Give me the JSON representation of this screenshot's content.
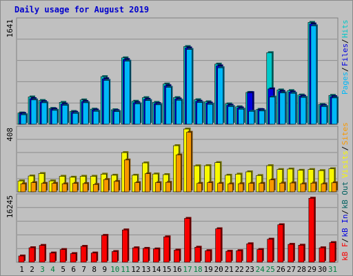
{
  "title": "Daily usage for August 2019",
  "colors": {
    "background": "#c0c0c0",
    "hits": "#00c8c8",
    "files": "#0000e0",
    "pages": "#00b8f8",
    "visits": "#f8f800",
    "sites": "#f89800",
    "kbin": "#0000e0",
    "kbout": "#006060",
    "kbf": "#f80000",
    "weekend_day": "#008040",
    "weekday": "#000000"
  },
  "chart_data": [
    {
      "type": "bar",
      "panel": "top",
      "ymax_label": "1641",
      "ylim": [
        0,
        1641
      ],
      "legend": [
        "Pages",
        "Files",
        "Hits"
      ],
      "categories": [
        "1",
        "2",
        "3",
        "4",
        "5",
        "6",
        "7",
        "8",
        "9",
        "10",
        "11",
        "12",
        "13",
        "14",
        "15",
        "16",
        "17",
        "18",
        "19",
        "20",
        "21",
        "22",
        "23",
        "24",
        "25",
        "26",
        "27",
        "28",
        "29",
        "30",
        "31"
      ],
      "weekend": [
        3,
        4,
        10,
        11,
        17,
        18,
        24,
        25,
        31
      ],
      "series": [
        {
          "name": "Hits",
          "values": [
            178,
            432,
            376,
            250,
            346,
            202,
            385,
            239,
            754,
            229,
            1052,
            364,
            421,
            346,
            637,
            422,
            1231,
            388,
            356,
            953,
            322,
            276,
            504,
            235,
            1134,
            543,
            533,
            463,
            1614,
            312,
            457
          ]
        },
        {
          "name": "Files",
          "values": [
            170,
            405,
            358,
            240,
            320,
            190,
            360,
            225,
            720,
            215,
            1025,
            342,
            395,
            328,
            610,
            400,
            1209,
            364,
            335,
            925,
            300,
            258,
            500,
            230,
            560,
            520,
            510,
            445,
            1590,
            298,
            437
          ]
        },
        {
          "name": "Pages",
          "values": [
            150,
            385,
            340,
            220,
            300,
            172,
            340,
            205,
            695,
            200,
            1000,
            322,
            375,
            308,
            585,
            380,
            1185,
            344,
            315,
            895,
            280,
            238,
            205,
            210,
            430,
            496,
            490,
            425,
            1560,
            280,
            417
          ]
        }
      ]
    },
    {
      "type": "bar",
      "panel": "middle",
      "ymax_label": "408",
      "ylim": [
        0,
        408
      ],
      "legend": [
        "Visits",
        "Sites"
      ],
      "series": [
        {
          "name": "Visits",
          "values": [
            71,
            103,
            119,
            71,
            101,
            95,
            101,
            101,
            115,
            108,
            255,
            108,
            188,
            116,
            112,
            300,
            408,
            169,
            170,
            190,
            108,
            115,
            130,
            106,
            170,
            145,
            148,
            140,
            145,
            138,
            150
          ]
        },
        {
          "name": "Sites",
          "values": [
            52,
            60,
            55,
            55,
            52,
            55,
            54,
            48,
            80,
            68,
            207,
            60,
            118,
            60,
            62,
            240,
            387,
            55,
            60,
            55,
            52,
            53,
            55,
            55,
            78,
            57,
            58,
            52,
            57,
            52,
            59
          ]
        }
      ]
    },
    {
      "type": "bar",
      "panel": "bottom",
      "ymax_label": "16245",
      "ylim": [
        0,
        16245
      ],
      "legend": [
        "kB F",
        "kB In",
        "kB Out"
      ],
      "series": [
        {
          "name": "kB F",
          "values": [
            1545,
            3590,
            4165,
            2285,
            3145,
            2140,
            3930,
            2285,
            6650,
            2645,
            8005,
            3570,
            3430,
            3290,
            6285,
            3000,
            10860,
            3715,
            2860,
            8290,
            2715,
            2855,
            4570,
            3145,
            5710,
            9290,
            4430,
            4215,
            15860,
            3570,
            4860
          ]
        }
      ]
    }
  ]
}
